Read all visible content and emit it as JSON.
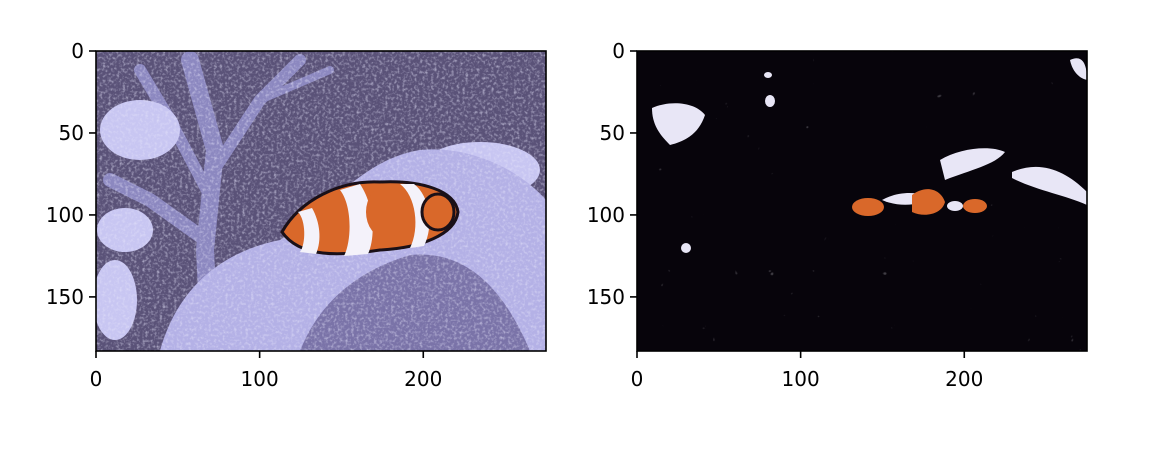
{
  "chart_data": [
    {
      "type": "image",
      "title": "",
      "xlabel": "",
      "ylabel": "",
      "xlim": [
        0,
        275
      ],
      "ylim": [
        183,
        0
      ],
      "xticks": [
        0,
        100,
        200
      ],
      "yticks": [
        0,
        50,
        100,
        150
      ],
      "content": "clownfish on coral, quantized colors",
      "palette": {
        "background": "#5a5278",
        "coral_light": "#c8c6f2",
        "coral_mid": "#9290d0",
        "fish_orange": "#d9682a",
        "fish_white": "#f4f2fa",
        "fish_black": "#1a1018"
      }
    },
    {
      "type": "image",
      "title": "",
      "xlabel": "",
      "ylabel": "",
      "xlim": [
        0,
        275
      ],
      "ylim": [
        183,
        0
      ],
      "xticks": [
        0,
        100,
        200
      ],
      "yticks": [
        0,
        50,
        100,
        150
      ],
      "content": "segmented mask over black background",
      "palette": {
        "background": "#07040b",
        "highlight": "#e8e6f6",
        "fish_orange": "#d9682a"
      }
    }
  ]
}
